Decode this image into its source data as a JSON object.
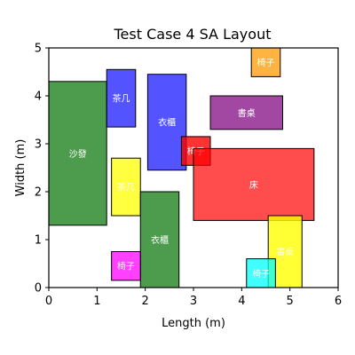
{
  "chart_data": {
    "type": "layout",
    "title": "Test Case 4 SA Layout",
    "xlabel": "Length (m)",
    "ylabel": "Width (m)",
    "xlim": [
      0,
      6
    ],
    "ylim": [
      0,
      5
    ],
    "xticks": [
      0,
      1,
      2,
      3,
      4,
      5,
      6
    ],
    "yticks": [
      0,
      1,
      2,
      3,
      4,
      5
    ],
    "grid": false,
    "items": [
      {
        "label": "沙發",
        "x": 0.0,
        "y": 1.3,
        "w": 1.2,
        "h": 3.0,
        "color": "#2e8b2e",
        "opacity": 0.85
      },
      {
        "label": "茶几",
        "x": 1.2,
        "y": 3.35,
        "w": 0.6,
        "h": 1.2,
        "color": "#1a1aff",
        "opacity": 0.75
      },
      {
        "label": "茶几",
        "x": 1.3,
        "y": 1.5,
        "w": 0.6,
        "h": 1.2,
        "color": "#ffff00",
        "opacity": 0.75
      },
      {
        "label": "衣櫃",
        "x": 2.05,
        "y": 2.45,
        "w": 0.8,
        "h": 2.0,
        "color": "#1a1aff",
        "opacity": 0.75
      },
      {
        "label": "衣櫃",
        "x": 1.9,
        "y": 0.0,
        "w": 0.8,
        "h": 2.0,
        "color": "#2e8b2e",
        "opacity": 0.85
      },
      {
        "label": "書桌",
        "x": 3.35,
        "y": 3.3,
        "w": 1.5,
        "h": 0.7,
        "color": "#8b1a8b",
        "opacity": 0.8
      },
      {
        "label": "椅子",
        "x": 2.75,
        "y": 2.55,
        "w": 0.6,
        "h": 0.6,
        "color": "#ff0000",
        "opacity": 0.8
      },
      {
        "label": "床",
        "x": 3.0,
        "y": 1.4,
        "w": 2.5,
        "h": 1.5,
        "color": "#ff0000",
        "opacity": 0.7
      },
      {
        "label": "椅子",
        "x": 4.2,
        "y": 4.4,
        "w": 0.6,
        "h": 0.6,
        "color": "#ff9900",
        "opacity": 0.75
      },
      {
        "label": "椅子",
        "x": 1.3,
        "y": 0.15,
        "w": 0.6,
        "h": 0.6,
        "color": "#ff00ff",
        "opacity": 0.75
      },
      {
        "label": "書桌",
        "x": 4.55,
        "y": 0.0,
        "w": 0.7,
        "h": 1.5,
        "color": "#ffff00",
        "opacity": 0.8
      },
      {
        "label": "椅子",
        "x": 4.1,
        "y": 0.0,
        "w": 0.6,
        "h": 0.6,
        "color": "#00ffff",
        "opacity": 0.75
      }
    ]
  }
}
